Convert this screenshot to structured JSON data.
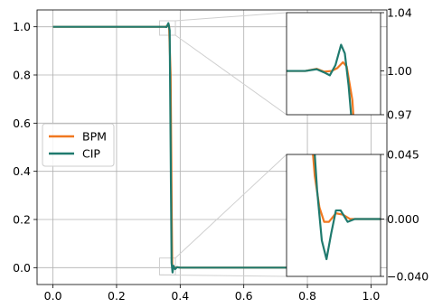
{
  "chart_data": {
    "type": "line",
    "xlim": [
      -0.05,
      1.05
    ],
    "ylim": [
      -0.07,
      1.07
    ],
    "xticks": [
      "0.0",
      "0.2",
      "0.4",
      "0.6",
      "0.8",
      "1.0"
    ],
    "yticks": [
      "0.0",
      "0.2",
      "0.4",
      "0.6",
      "0.8",
      "1.0"
    ],
    "grid": true,
    "legend_position": "center-left",
    "colors": {
      "BPM": "#f07820",
      "CIP": "#1f7a6e"
    },
    "series": [
      {
        "name": "BPM",
        "x": [
          0.0,
          0.3,
          0.33,
          0.35,
          0.36,
          0.365,
          0.37,
          0.373,
          0.375,
          0.38,
          0.39,
          0.4,
          1.0
        ],
        "y": [
          1.0,
          1.0,
          1.0,
          1.0,
          1.002,
          1.006,
          0.8,
          0.3,
          0.01,
          -0.003,
          0.002,
          0.0,
          0.0
        ]
      },
      {
        "name": "CIP",
        "x": [
          0.0,
          0.3,
          0.33,
          0.35,
          0.357,
          0.363,
          0.367,
          0.37,
          0.373,
          0.376,
          0.379,
          0.384,
          0.39,
          0.4,
          1.0
        ],
        "y": [
          1.0,
          1.0,
          1.0,
          1.0,
          0.999,
          1.015,
          0.985,
          0.5,
          0.02,
          -0.02,
          0.008,
          -0.006,
          0.002,
          0.0,
          0.0
        ]
      }
    ],
    "insets": [
      {
        "name": "upper-inset",
        "xlim": [
          0.34,
          0.39
        ],
        "ylim": [
          0.97,
          1.04
        ],
        "yticks": [
          "1.04",
          "1.00",
          "0.97"
        ],
        "ytick_values": [
          1.04,
          1.0,
          0.97
        ]
      },
      {
        "name": "lower-inset",
        "xlim": [
          0.355,
          0.395
        ],
        "ylim": [
          -0.04,
          0.045
        ],
        "yticks": [
          "0.045",
          "0.000",
          "−0.040"
        ],
        "ytick_values": [
          0.045,
          0.0,
          -0.04
        ]
      }
    ]
  },
  "legend": {
    "bpm_label": "BPM",
    "cip_label": "CIP"
  }
}
